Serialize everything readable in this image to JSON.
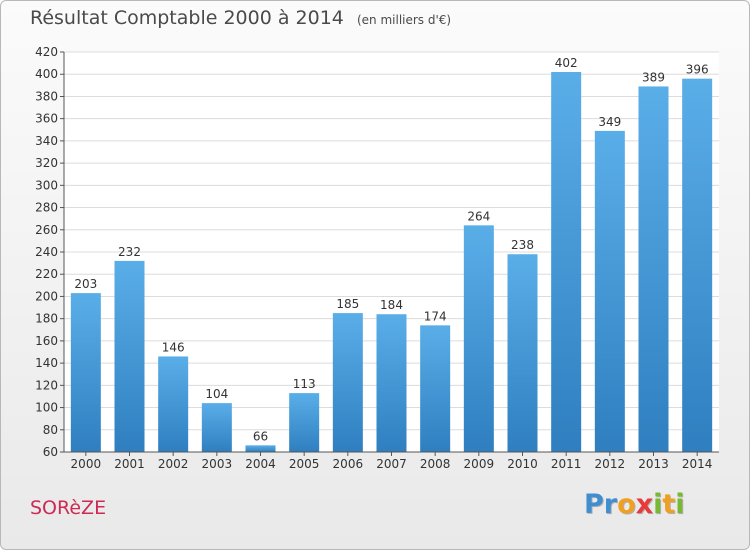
{
  "title": "Résultat Comptable 2000 à 2014",
  "subtitle": "(en milliers d'€)",
  "commune": "SORèZE",
  "logo": {
    "letters": [
      {
        "char": "P",
        "color": "#3f8fd0"
      },
      {
        "char": "r",
        "color": "#3f8fd0"
      },
      {
        "char": "o",
        "color": "#f0a020"
      },
      {
        "char": "x",
        "color": "#e83a3a"
      },
      {
        "char": "i",
        "color": "#79b832"
      },
      {
        "char": "t",
        "color": "#f0a020"
      },
      {
        "char": "i",
        "color": "#79b832"
      }
    ]
  },
  "chart_data": {
    "type": "bar",
    "categories": [
      "2000",
      "2001",
      "2002",
      "2003",
      "2004",
      "2005",
      "2006",
      "2007",
      "2008",
      "2009",
      "2010",
      "2011",
      "2012",
      "2013",
      "2014"
    ],
    "values": [
      203,
      232,
      146,
      104,
      66,
      113,
      185,
      184,
      174,
      264,
      238,
      402,
      349,
      389,
      396
    ],
    "ylim": [
      60,
      420
    ],
    "ytick_step": 20,
    "grid": true,
    "bar_color_top": "#5aaee8",
    "bar_color_bottom": "#2f7fc0",
    "grid_color": "#dcdcdc"
  }
}
